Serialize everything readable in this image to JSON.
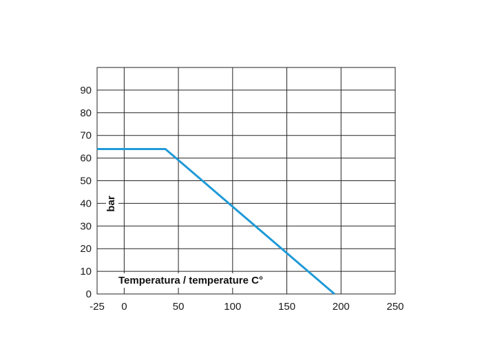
{
  "chart_data": {
    "type": "line",
    "title": "",
    "xlabel": "Temperatura / temperature C°",
    "ylabel": "bar",
    "xlim": [
      -25,
      250
    ],
    "ylim": [
      0,
      100
    ],
    "x_ticks": [
      -25,
      0,
      50,
      100,
      150,
      200,
      250
    ],
    "y_ticks": [
      0,
      10,
      20,
      30,
      40,
      50,
      60,
      70,
      80,
      90
    ],
    "grid": true,
    "series": [
      {
        "color": "#1e9ad6",
        "x": [
          -25,
          38,
          194
        ],
        "y": [
          64,
          64,
          0
        ]
      }
    ]
  }
}
